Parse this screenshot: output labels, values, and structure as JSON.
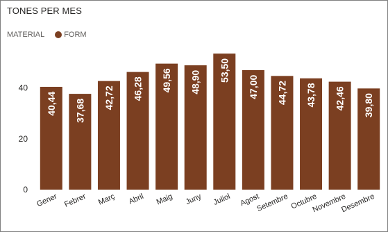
{
  "chart_data": {
    "type": "bar",
    "title": "TONES PER MES",
    "legend_title": "MATERIAL",
    "series_name": "FORM",
    "color": "#7b3f21",
    "categories": [
      "Gener",
      "Febrer",
      "Març",
      "Abril",
      "Maig",
      "Juny",
      "Juliol",
      "Agost",
      "Setembre",
      "Octubre",
      "Novembre",
      "Desembre"
    ],
    "values": [
      40.44,
      37.68,
      42.72,
      46.28,
      49.56,
      48.9,
      53.5,
      47.0,
      44.72,
      43.78,
      42.46,
      39.8
    ],
    "data_labels": [
      "40,44",
      "37,68",
      "42,72",
      "46,28",
      "49,56",
      "48,90",
      "53,50",
      "47,00",
      "44,72",
      "43,78",
      "42,46",
      "39,80"
    ],
    "yticks": [
      0,
      20,
      40
    ],
    "ylim": [
      0,
      60
    ],
    "grid": false,
    "legend_position": "top-left"
  }
}
